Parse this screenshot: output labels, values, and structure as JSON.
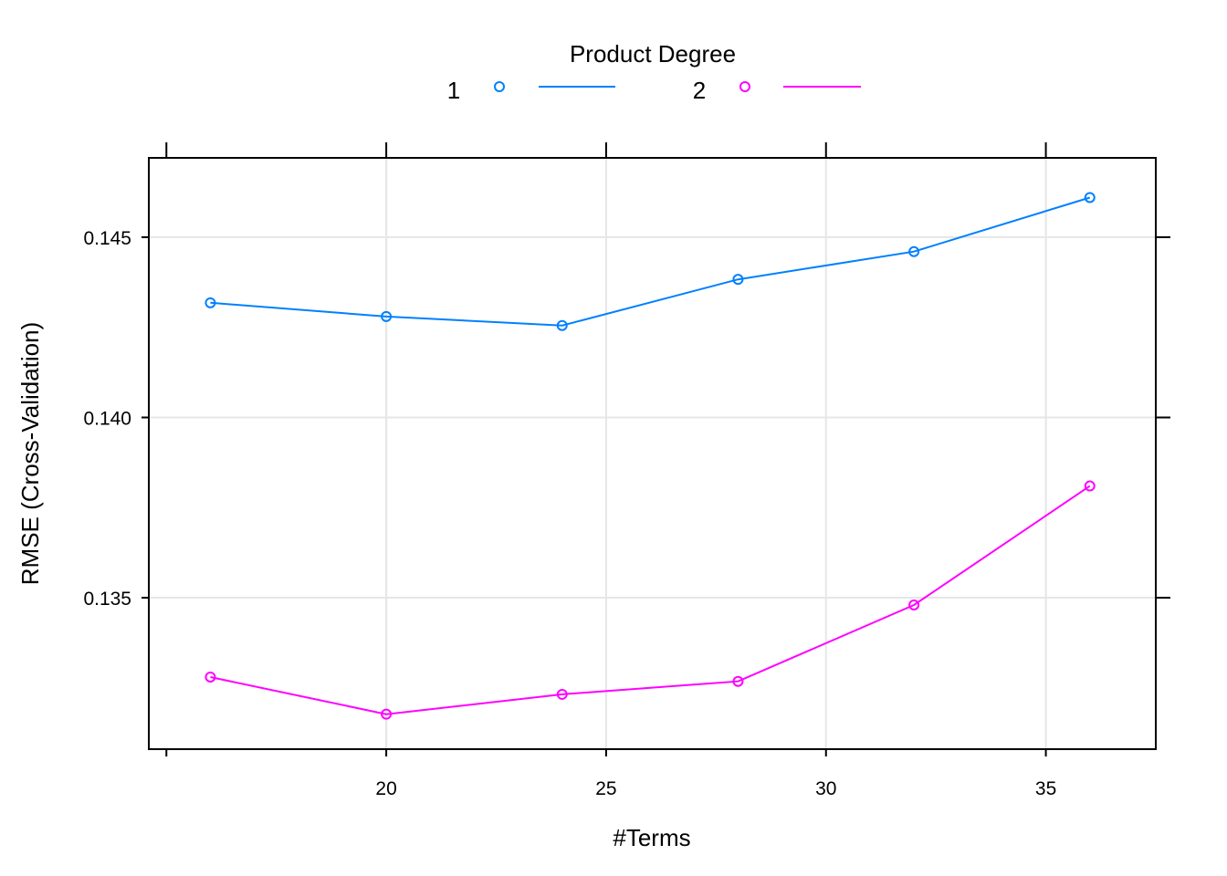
{
  "legend": {
    "title": "Product Degree",
    "entries": [
      {
        "label": "1",
        "color": "#0080ff"
      },
      {
        "label": "2",
        "color": "#ff00ff"
      }
    ],
    "placement": "top-center"
  },
  "chart_data": {
    "type": "line",
    "xlabel": "#Terms",
    "ylabel": "RMSE (Cross-Validation)",
    "x": [
      16,
      20,
      24,
      28,
      32,
      36
    ],
    "series": [
      {
        "name": "1",
        "color": "#0080ff",
        "values": [
          0.14318,
          0.1428,
          0.14255,
          0.14383,
          0.1446,
          0.1461
        ]
      },
      {
        "name": "2",
        "color": "#ff00ff",
        "values": [
          0.1328,
          0.13177,
          0.13232,
          0.13268,
          0.1348,
          0.1381
        ]
      }
    ],
    "xticks": [
      20,
      25,
      30,
      35
    ],
    "xtick_labels": [
      "20",
      "25",
      "30",
      "35"
    ],
    "yticks": [
      0.135,
      0.14,
      0.145
    ],
    "ytick_labels": [
      "0.135",
      "0.140",
      "0.145"
    ],
    "xlim": [
      14.6,
      37.5
    ],
    "ylim": [
      0.1308,
      0.1472
    ],
    "grid": true,
    "markers": "open-circle"
  }
}
